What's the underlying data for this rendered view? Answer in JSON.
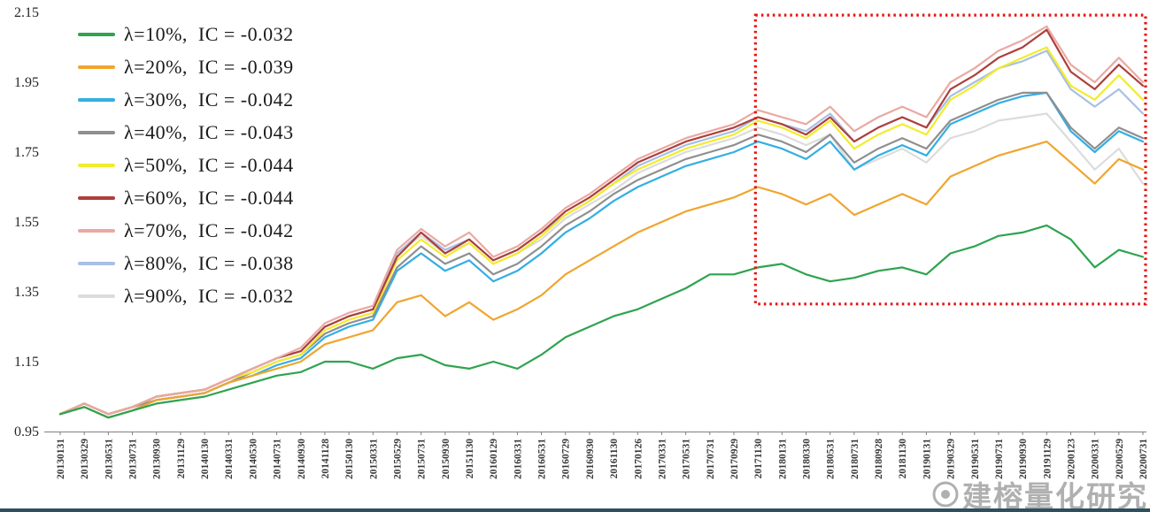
{
  "page": {
    "background": "#ffffff",
    "bottom_bar_color": "#2e4f5e",
    "axis_color": "#808080",
    "tick_text_color": "#3a3a3a"
  },
  "watermark": {
    "text": "建榕量化研究",
    "color": "#a3a3a3",
    "logo": "circle-logo-icon"
  },
  "chart_data": {
    "type": "line",
    "title": "",
    "xlabel": "",
    "ylabel": "",
    "grid": false,
    "legend_position": "top-left",
    "ylim": [
      0.95,
      2.15
    ],
    "y_ticks": [
      0.95,
      1.15,
      1.35,
      1.55,
      1.75,
      1.95,
      2.15
    ],
    "x": [
      "20130131",
      "20130329",
      "20130531",
      "20130731",
      "20130930",
      "20131129",
      "20140130",
      "20140331",
      "20140530",
      "20140731",
      "20140930",
      "20141128",
      "20150130",
      "20150331",
      "20150529",
      "20150731",
      "20150930",
      "20151130",
      "20160129",
      "20160331",
      "20160531",
      "20160729",
      "20160930",
      "20161130",
      "20170126",
      "20170331",
      "20170531",
      "20170731",
      "20170929",
      "20171130",
      "20180131",
      "20180330",
      "20180531",
      "20180731",
      "20180928",
      "20181130",
      "20190131",
      "20190329",
      "20190531",
      "20190731",
      "20190930",
      "20191129",
      "20200123",
      "20200331",
      "20200529",
      "20200731"
    ],
    "series": [
      {
        "name": "λ=10%",
        "ic": "-0.032",
        "label": "λ=10%,  IC = -0.032",
        "color": "#2fa34f",
        "values": [
          1.0,
          1.02,
          0.99,
          1.01,
          1.03,
          1.04,
          1.05,
          1.07,
          1.09,
          1.11,
          1.12,
          1.15,
          1.15,
          1.13,
          1.16,
          1.17,
          1.14,
          1.13,
          1.15,
          1.13,
          1.17,
          1.22,
          1.25,
          1.28,
          1.3,
          1.33,
          1.36,
          1.4,
          1.4,
          1.42,
          1.43,
          1.4,
          1.38,
          1.39,
          1.41,
          1.42,
          1.4,
          1.46,
          1.48,
          1.51,
          1.52,
          1.54,
          1.5,
          1.42,
          1.47,
          1.45
        ]
      },
      {
        "name": "λ=20%",
        "ic": "-0.039",
        "label": "λ=20%,  IC = -0.039",
        "color": "#f0a52e",
        "values": [
          1.0,
          1.02,
          0.99,
          1.01,
          1.04,
          1.05,
          1.06,
          1.09,
          1.11,
          1.13,
          1.15,
          1.2,
          1.22,
          1.24,
          1.32,
          1.34,
          1.28,
          1.32,
          1.27,
          1.3,
          1.34,
          1.4,
          1.44,
          1.48,
          1.52,
          1.55,
          1.58,
          1.6,
          1.62,
          1.65,
          1.63,
          1.6,
          1.63,
          1.57,
          1.6,
          1.63,
          1.6,
          1.68,
          1.71,
          1.74,
          1.76,
          1.78,
          1.72,
          1.66,
          1.73,
          1.7
        ]
      },
      {
        "name": "λ=30%",
        "ic": "-0.042",
        "label": "λ=30%,  IC = -0.042",
        "color": "#33aee3",
        "values": [
          1.0,
          1.02,
          0.99,
          1.01,
          1.04,
          1.05,
          1.06,
          1.09,
          1.11,
          1.14,
          1.16,
          1.22,
          1.25,
          1.27,
          1.41,
          1.46,
          1.41,
          1.44,
          1.38,
          1.41,
          1.46,
          1.52,
          1.56,
          1.61,
          1.65,
          1.68,
          1.71,
          1.73,
          1.75,
          1.78,
          1.76,
          1.73,
          1.78,
          1.7,
          1.74,
          1.77,
          1.74,
          1.83,
          1.86,
          1.89,
          1.91,
          1.92,
          1.81,
          1.75,
          1.81,
          1.78
        ]
      },
      {
        "name": "λ=40%",
        "ic": "-0.043",
        "label": "λ=40%,  IC = -0.043",
        "color": "#8f8f8f",
        "values": [
          1.0,
          1.03,
          1.0,
          1.02,
          1.04,
          1.05,
          1.06,
          1.09,
          1.12,
          1.15,
          1.17,
          1.23,
          1.26,
          1.28,
          1.42,
          1.48,
          1.43,
          1.46,
          1.4,
          1.43,
          1.48,
          1.54,
          1.58,
          1.63,
          1.67,
          1.7,
          1.73,
          1.75,
          1.77,
          1.8,
          1.78,
          1.75,
          1.8,
          1.72,
          1.76,
          1.79,
          1.76,
          1.84,
          1.87,
          1.9,
          1.92,
          1.92,
          1.82,
          1.76,
          1.82,
          1.79
        ]
      },
      {
        "name": "λ=50%",
        "ic": "-0.044",
        "label": "λ=50%,  IC = -0.044",
        "color": "#f2ec2b",
        "values": [
          1.0,
          1.03,
          1.0,
          1.02,
          1.05,
          1.06,
          1.07,
          1.1,
          1.12,
          1.15,
          1.17,
          1.24,
          1.27,
          1.29,
          1.44,
          1.5,
          1.45,
          1.49,
          1.43,
          1.46,
          1.51,
          1.57,
          1.61,
          1.66,
          1.7,
          1.73,
          1.76,
          1.78,
          1.8,
          1.84,
          1.82,
          1.79,
          1.84,
          1.76,
          1.8,
          1.83,
          1.8,
          1.9,
          1.94,
          1.99,
          2.02,
          2.05,
          1.94,
          1.9,
          1.97,
          1.9
        ]
      },
      {
        "name": "λ=60%",
        "ic": "-0.044",
        "label": "λ=60%,  IC = -0.044",
        "color": "#ad3f3b",
        "values": [
          1.0,
          1.03,
          1.0,
          1.02,
          1.05,
          1.06,
          1.07,
          1.1,
          1.13,
          1.16,
          1.18,
          1.25,
          1.28,
          1.3,
          1.45,
          1.52,
          1.46,
          1.5,
          1.44,
          1.47,
          1.52,
          1.58,
          1.62,
          1.67,
          1.72,
          1.75,
          1.78,
          1.8,
          1.82,
          1.85,
          1.83,
          1.8,
          1.85,
          1.78,
          1.82,
          1.85,
          1.82,
          1.93,
          1.97,
          2.02,
          2.05,
          2.1,
          1.98,
          1.93,
          2.0,
          1.94
        ]
      },
      {
        "name": "λ=70%",
        "ic": "-0.042",
        "label": "λ=70%,  IC = -0.042",
        "color": "#e9a9a2",
        "values": [
          1.0,
          1.03,
          1.0,
          1.02,
          1.05,
          1.06,
          1.07,
          1.1,
          1.13,
          1.16,
          1.19,
          1.26,
          1.29,
          1.31,
          1.47,
          1.53,
          1.48,
          1.52,
          1.45,
          1.48,
          1.53,
          1.59,
          1.63,
          1.68,
          1.73,
          1.76,
          1.79,
          1.81,
          1.83,
          1.87,
          1.85,
          1.83,
          1.88,
          1.81,
          1.85,
          1.88,
          1.85,
          1.95,
          1.99,
          2.04,
          2.07,
          2.11,
          2.0,
          1.95,
          2.02,
          1.95
        ]
      },
      {
        "name": "λ=80%",
        "ic": "-0.038",
        "label": "λ=80%,  IC = -0.038",
        "color": "#a7c0e4",
        "values": [
          1.0,
          1.03,
          1.0,
          1.02,
          1.05,
          1.06,
          1.07,
          1.1,
          1.13,
          1.16,
          1.18,
          1.25,
          1.28,
          1.3,
          1.46,
          1.52,
          1.47,
          1.5,
          1.44,
          1.47,
          1.52,
          1.57,
          1.61,
          1.66,
          1.71,
          1.74,
          1.77,
          1.79,
          1.81,
          1.85,
          1.83,
          1.81,
          1.86,
          1.78,
          1.82,
          1.85,
          1.82,
          1.91,
          1.95,
          1.99,
          2.01,
          2.04,
          1.93,
          1.88,
          1.93,
          1.86
        ]
      },
      {
        "name": "λ=90%",
        "ic": "-0.032",
        "label": "λ=90%,  IC = -0.032",
        "color": "#dcdcdc",
        "values": [
          1.0,
          1.03,
          1.0,
          1.02,
          1.05,
          1.06,
          1.07,
          1.1,
          1.13,
          1.16,
          1.18,
          1.25,
          1.28,
          1.3,
          1.46,
          1.51,
          1.46,
          1.49,
          1.43,
          1.46,
          1.5,
          1.56,
          1.6,
          1.64,
          1.69,
          1.72,
          1.75,
          1.77,
          1.79,
          1.82,
          1.8,
          1.77,
          1.8,
          1.7,
          1.73,
          1.76,
          1.72,
          1.79,
          1.81,
          1.84,
          1.85,
          1.86,
          1.78,
          1.7,
          1.76,
          1.66
        ]
      }
    ],
    "draw_order": [
      8,
      7,
      2,
      3,
      4,
      5,
      6,
      1,
      0
    ],
    "annotation": {
      "type": "highlight-box",
      "description": "red dotted rectangle highlighting the 2018-2020 out-of-sample region",
      "x_start": "20180131",
      "x_end": "20200731",
      "y_bottom": 1.315,
      "y_top": 2.142,
      "color": "#e8100c",
      "style": "dotted"
    }
  }
}
